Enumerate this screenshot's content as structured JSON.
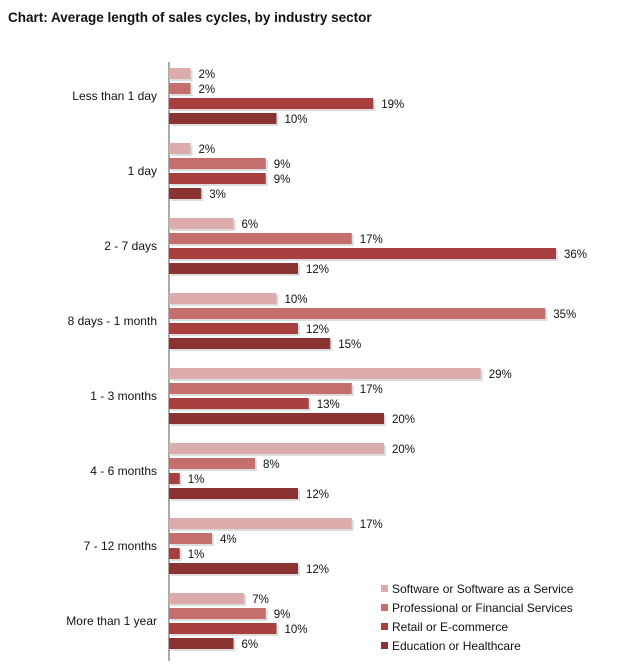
{
  "chart_data": {
    "type": "bar",
    "orientation": "horizontal",
    "title": "Chart: Average length of sales cycles, by industry sector",
    "categories": [
      "Less than 1 day",
      "1 day",
      "2 - 7 days",
      "8 days - 1 month",
      "1 - 3 months",
      "4 - 6 months",
      "7 - 12 months",
      "More than 1 year"
    ],
    "series": [
      {
        "name": "Software or Software as a Service",
        "color": "#dcabab",
        "values": [
          2,
          2,
          6,
          10,
          29,
          20,
          17,
          7
        ]
      },
      {
        "name": "Professional or Financial Services",
        "color": "#c46e6e",
        "values": [
          2,
          9,
          17,
          35,
          17,
          8,
          4,
          9
        ]
      },
      {
        "name": "Retail or E-commerce",
        "color": "#a83f3f",
        "values": [
          19,
          9,
          36,
          12,
          13,
          1,
          1,
          10
        ]
      },
      {
        "name": "Education or Healthcare",
        "color": "#8b3333",
        "values": [
          10,
          3,
          12,
          15,
          20,
          12,
          12,
          6
        ]
      }
    ],
    "value_suffix": "%",
    "xlim": [
      0,
      40
    ],
    "grid": false,
    "legend_position": "bottom-right"
  }
}
